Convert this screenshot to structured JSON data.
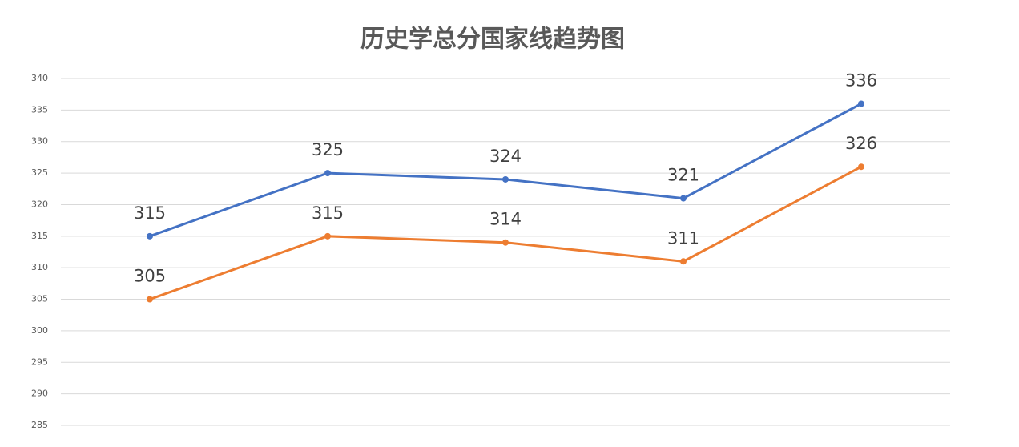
{
  "chart_data": {
    "type": "line",
    "title": "历史学总分国家线趋势图",
    "categories": [
      null,
      null,
      null,
      null,
      null
    ],
    "series": [
      {
        "color": "#4472c4",
        "values": [
          315,
          325,
          324,
          321,
          336
        ]
      },
      {
        "color": "#ed7d31",
        "values": [
          305,
          315,
          314,
          311,
          326
        ]
      }
    ],
    "ylim": [
      285,
      340
    ],
    "yticks": [
      285,
      290,
      295,
      300,
      305,
      310,
      315,
      320,
      325,
      330,
      335,
      340
    ],
    "grid": true
  }
}
